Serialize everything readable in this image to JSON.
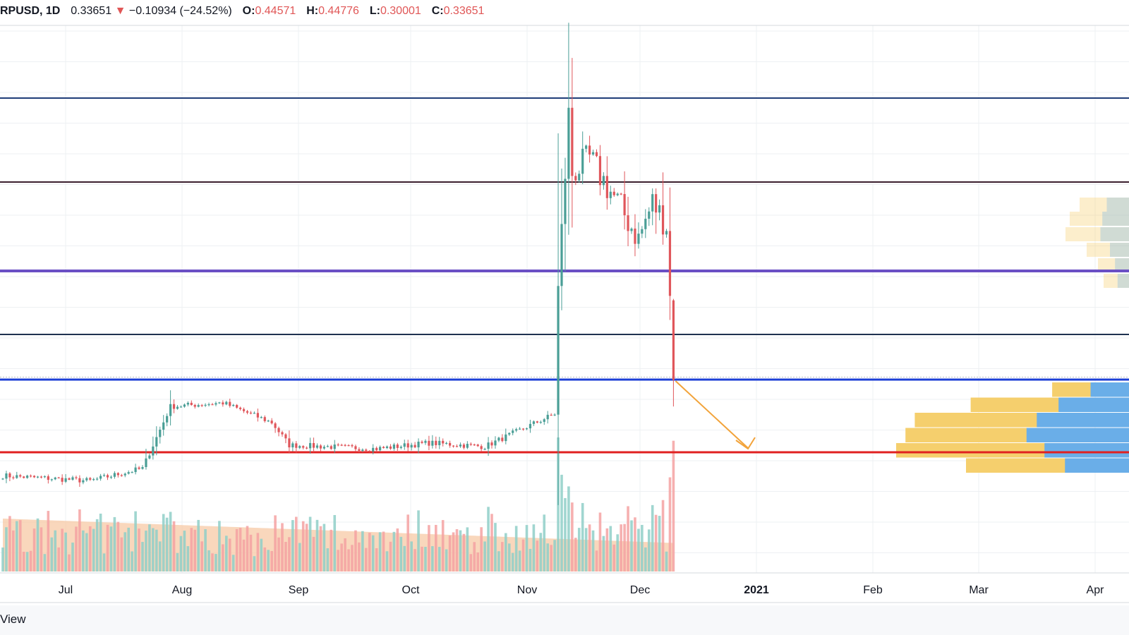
{
  "header": {
    "symbol": "RPUSD, 1D",
    "last": "0.33651",
    "arrow": "▼",
    "change": "−0.10934 (−24.52%)",
    "o_label": "O:",
    "o_val": "0.44571",
    "h_label": "H:",
    "h_val": "0.44776",
    "l_label": "L:",
    "l_val": "0.30001",
    "c_label": "C:",
    "c_val": "0.33651"
  },
  "footer": {
    "brand_fragment": "View"
  },
  "colors": {
    "up": "#4a9e96",
    "down": "#e0565b",
    "vol_up": "#8fcfc8",
    "vol_down": "#f4a2a2",
    "vol_ma_fill": "#f7c9a6",
    "vp_up": "#f5cf6d",
    "vp_down": "#6aaee8",
    "grid": "#eef0f3",
    "arrow": "#f2a33a"
  },
  "chart_data": {
    "type": "candlestick",
    "timeframe": "1D",
    "x_ticks": [
      "Jul",
      "Aug",
      "Sep",
      "Oct",
      "Nov",
      "Dec",
      "2021",
      "Feb",
      "Mar",
      "Apr"
    ],
    "ohlc_last": {
      "open": 0.44571,
      "high": 0.44776,
      "low": 0.30001,
      "close": 0.33651
    },
    "price_path": [
      [
        "2020-06-15",
        0.205
      ],
      [
        "2020-07-10",
        0.198
      ],
      [
        "2020-07-25",
        0.215
      ],
      [
        "2020-08-02",
        0.3
      ],
      [
        "2020-08-17",
        0.305
      ],
      [
        "2020-08-31",
        0.278
      ],
      [
        "2020-09-05",
        0.247
      ],
      [
        "2020-09-30",
        0.242
      ],
      [
        "2020-10-15",
        0.25
      ],
      [
        "2020-10-31",
        0.245
      ],
      [
        "2020-11-20",
        0.29
      ],
      [
        "2020-11-21",
        0.46
      ],
      [
        "2020-11-24",
        0.7
      ],
      [
        "2020-11-25",
        0.62
      ],
      [
        "2020-11-30",
        0.64
      ],
      [
        "2020-12-08",
        0.58
      ],
      [
        "2020-12-14",
        0.53
      ],
      [
        "2020-12-18",
        0.58
      ],
      [
        "2020-12-22",
        0.55
      ],
      [
        "2020-12-23",
        0.45
      ],
      [
        "2020-12-24",
        0.337
      ]
    ],
    "levels": [
      {
        "color": "#1f3d78",
        "width": 2
      },
      {
        "color": "#3b1f2e",
        "width": 2
      },
      {
        "color": "#6a4fc4",
        "width": 4
      },
      {
        "color": "#1f3250",
        "width": 2
      },
      {
        "color": "#1c3fd6",
        "width": 3
      },
      {
        "color": "#e02020",
        "width": 3
      }
    ],
    "volume_profile": [
      {
        "up": 0.33,
        "down": 0.3
      },
      {
        "up": 0.68,
        "down": 0.55
      },
      {
        "up": 0.92,
        "down": 0.72
      },
      {
        "up": 0.96,
        "down": 0.8
      },
      {
        "up": 1.0,
        "down": 0.66
      },
      {
        "up": 0.7,
        "down": 0.5
      }
    ]
  }
}
